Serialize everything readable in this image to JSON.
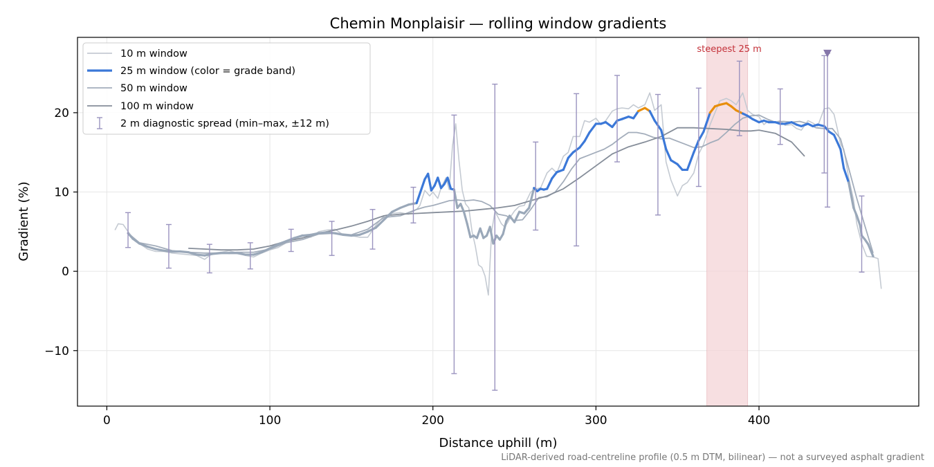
{
  "chart_data": {
    "type": "line",
    "title": "Chemin Monplaisir — rolling window gradients",
    "xlabel": "Distance uphill (m)",
    "ylabel": "Gradient (%)",
    "xlim": [
      -18,
      498
    ],
    "ylim": [
      -17,
      29.5
    ],
    "xticks": [
      0,
      100,
      200,
      300,
      400
    ],
    "yticks": [
      -10,
      0,
      10,
      20
    ],
    "ytick_labels": [
      "−10",
      "0",
      "10",
      "20"
    ],
    "grid": true,
    "legend_position": "top-left",
    "highlight": {
      "label": "steepest 25 m",
      "x_start": 368,
      "x_end": 393
    },
    "marker": {
      "shape": "down-triangle",
      "x": 442,
      "y": 27.5
    },
    "footnote": "LiDAR-derived road-centreline profile (0.5 m DTM, bilinear) — not a surveyed asphalt gradient",
    "legend": [
      "10 m window",
      "25 m window (color = grade band)",
      "50 m window",
      "100 m window",
      "2 m diagnostic spread (min–max, ±12 m)"
    ],
    "colors": {
      "w10": "#c4cad2",
      "w25_low": "#9aa8b9",
      "w25_mid": "#3b78d8",
      "w25_high": "#e88e0c",
      "w50": "#a3adbb",
      "w100": "#858d99",
      "spread": "#9a93bf",
      "highlight": "#f5d5d8",
      "annotation": "#c4323a",
      "marker": "#8677aa"
    },
    "series": [
      {
        "name": "10 m window",
        "x": [
          5,
          7,
          10,
          13,
          16,
          20,
          25,
          30,
          35,
          40,
          45,
          50,
          55,
          60,
          65,
          70,
          75,
          80,
          85,
          90,
          95,
          100,
          105,
          110,
          115,
          120,
          125,
          130,
          135,
          140,
          145,
          150,
          155,
          160,
          165,
          170,
          175,
          180,
          185,
          190,
          192,
          195,
          198,
          200,
          203,
          205,
          208,
          210,
          212,
          214,
          216,
          218,
          220,
          222,
          224,
          226,
          228,
          230,
          232,
          234,
          236,
          238,
          240,
          242,
          244,
          246,
          248,
          250,
          253,
          256,
          260,
          263,
          266,
          270,
          273,
          276,
          280,
          283,
          286,
          290,
          293,
          296,
          300,
          303,
          306,
          310,
          313,
          316,
          320,
          323,
          326,
          330,
          333,
          336,
          340,
          343,
          346,
          350,
          353,
          356,
          360,
          363,
          366,
          370,
          373,
          376,
          380,
          383,
          386,
          390,
          393,
          396,
          400,
          403,
          406,
          410,
          413,
          416,
          420,
          423,
          426,
          430,
          433,
          436,
          440,
          443,
          446,
          448,
          450,
          452,
          455,
          458,
          460,
          463,
          466,
          470,
          473,
          475
        ],
        "y": [
          5.2,
          6.0,
          5.9,
          5.0,
          4.2,
          3.5,
          2.8,
          2.5,
          2.5,
          2.3,
          2.2,
          2.1,
          2.0,
          1.5,
          2.3,
          2.4,
          2.6,
          2.3,
          2.0,
          1.8,
          2.3,
          2.7,
          3.0,
          3.6,
          4.2,
          4.6,
          4.3,
          5.0,
          5.2,
          5.3,
          4.6,
          4.5,
          4.3,
          4.3,
          5.8,
          7.0,
          7.3,
          7.4,
          7.2,
          7.8,
          8.3,
          10.2,
          9.5,
          10.0,
          9.2,
          10.5,
          11.8,
          10.3,
          15.8,
          18.6,
          14.0,
          10.2,
          8.5,
          8.0,
          5.0,
          3.2,
          0.8,
          0.5,
          -0.6,
          -3.0,
          5.0,
          7.5,
          6.8,
          6.0,
          5.6,
          6.2,
          7.0,
          7.6,
          8.2,
          8.3,
          10.0,
          10.4,
          10.5,
          12.4,
          13.0,
          12.4,
          14.5,
          15.0,
          17.0,
          17.0,
          19.0,
          18.8,
          19.3,
          18.5,
          19.0,
          20.2,
          20.5,
          20.6,
          20.5,
          21.0,
          20.6,
          21.0,
          22.5,
          20.3,
          21.0,
          13.8,
          11.5,
          9.5,
          10.8,
          11.2,
          12.4,
          14.8,
          16.0,
          18.5,
          20.0,
          21.5,
          21.8,
          21.5,
          21.0,
          22.5,
          20.3,
          19.8,
          19.5,
          18.5,
          19.0,
          18.8,
          19.0,
          18.4,
          18.5,
          18.0,
          17.8,
          19.0,
          18.7,
          18.3,
          20.5,
          20.6,
          19.8,
          18.0,
          16.0,
          15.4,
          11.8,
          9.0,
          6.0,
          3.5,
          1.9,
          1.8,
          1.6,
          -2.2
        ]
      },
      {
        "name": "50 m window",
        "x": [
          13,
          20,
          30,
          40,
          50,
          60,
          70,
          80,
          90,
          100,
          110,
          120,
          130,
          140,
          150,
          160,
          170,
          180,
          190,
          195,
          200,
          205,
          210,
          215,
          220,
          225,
          230,
          235,
          240,
          245,
          250,
          255,
          260,
          265,
          270,
          275,
          280,
          285,
          290,
          295,
          300,
          305,
          310,
          315,
          320,
          325,
          330,
          335,
          340,
          345,
          350,
          355,
          360,
          365,
          370,
          375,
          380,
          385,
          390,
          395,
          400,
          405,
          410,
          415,
          420,
          425,
          430,
          435,
          440,
          445,
          450,
          455,
          460,
          465,
          470
        ],
        "y": [
          4.8,
          3.6,
          3.2,
          2.6,
          2.4,
          2.3,
          2.3,
          2.4,
          2.4,
          2.8,
          3.6,
          4.0,
          4.7,
          4.8,
          4.6,
          5.3,
          6.8,
          7.0,
          7.8,
          8.1,
          8.3,
          8.6,
          8.9,
          9.0,
          8.9,
          9.0,
          8.8,
          8.3,
          7.2,
          7.0,
          6.4,
          6.5,
          7.8,
          9.3,
          9.4,
          10.0,
          11.3,
          12.9,
          14.2,
          14.6,
          15.0,
          15.4,
          16.0,
          16.8,
          17.5,
          17.5,
          17.3,
          16.9,
          16.7,
          16.8,
          16.4,
          16.0,
          15.6,
          15.7,
          16.2,
          16.6,
          17.5,
          18.5,
          19.3,
          19.6,
          19.7,
          19.2,
          18.8,
          18.9,
          18.8,
          18.9,
          18.6,
          18.1,
          18.0,
          18.0,
          16.7,
          13.0,
          9.2,
          5.7,
          2.3
        ]
      },
      {
        "name": "100 m window",
        "x": [
          50,
          60,
          70,
          80,
          90,
          100,
          110,
          120,
          130,
          140,
          150,
          160,
          170,
          180,
          190,
          200,
          210,
          220,
          230,
          240,
          250,
          260,
          270,
          280,
          290,
          300,
          310,
          320,
          330,
          340,
          350,
          360,
          370,
          380,
          390,
          395,
          400,
          410,
          420,
          428
        ],
        "y": [
          2.9,
          2.8,
          2.7,
          2.7,
          2.8,
          3.2,
          3.8,
          4.2,
          4.8,
          5.2,
          5.7,
          6.3,
          7.0,
          7.2,
          7.3,
          7.4,
          7.5,
          7.6,
          7.8,
          8.0,
          8.3,
          8.9,
          9.5,
          10.4,
          11.8,
          13.3,
          14.8,
          15.7,
          16.3,
          17.0,
          18.1,
          18.1,
          18.0,
          17.9,
          17.7,
          17.7,
          17.8,
          17.4,
          16.3,
          14.5
        ]
      },
      {
        "name": "25 m window (color = grade band)",
        "x": [
          13,
          16,
          20,
          25,
          30,
          35,
          40,
          45,
          50,
          55,
          60,
          65,
          70,
          75,
          80,
          85,
          90,
          95,
          100,
          105,
          110,
          115,
          120,
          125,
          130,
          135,
          140,
          145,
          150,
          155,
          160,
          165,
          170,
          175,
          180,
          185,
          190,
          195,
          197,
          199,
          201,
          203,
          205,
          207,
          209,
          211,
          213,
          215,
          217,
          219,
          221,
          223,
          225,
          227,
          229,
          231,
          233,
          235,
          237,
          239,
          241,
          243,
          245,
          247,
          250,
          253,
          256,
          259,
          262,
          264,
          266,
          268,
          270,
          273,
          276,
          280,
          283,
          286,
          290,
          293,
          296,
          300,
          303,
          306,
          310,
          313,
          316,
          320,
          323,
          326,
          330,
          333,
          336,
          340,
          343,
          346,
          350,
          353,
          356,
          360,
          363,
          366,
          370,
          373,
          376,
          380,
          383,
          386,
          390,
          393,
          396,
          400,
          403,
          406,
          410,
          413,
          416,
          420,
          423,
          426,
          430,
          433,
          436,
          440,
          443,
          446,
          450,
          452,
          455,
          458,
          460,
          462,
          463,
          465,
          467,
          470
        ],
        "y": [
          4.8,
          4.1,
          3.5,
          3.1,
          2.8,
          2.6,
          2.5,
          2.5,
          2.4,
          2.1,
          2.0,
          2.2,
          2.3,
          2.3,
          2.3,
          2.1,
          2.1,
          2.4,
          2.9,
          3.4,
          3.8,
          4.2,
          4.5,
          4.6,
          4.8,
          4.9,
          4.8,
          4.6,
          4.5,
          4.6,
          5.0,
          5.5,
          6.5,
          7.5,
          8.0,
          8.4,
          8.6,
          11.6,
          12.3,
          10.2,
          10.8,
          11.8,
          10.5,
          11.0,
          11.8,
          10.4,
          10.3,
          8.0,
          8.5,
          7.5,
          6.0,
          4.3,
          4.5,
          4.2,
          5.4,
          4.2,
          4.5,
          5.6,
          3.5,
          4.5,
          4.0,
          4.7,
          6.3,
          7.0,
          6.2,
          7.5,
          7.3,
          8.0,
          10.5,
          10.1,
          10.4,
          10.3,
          10.4,
          11.7,
          12.5,
          12.8,
          14.3,
          15.0,
          15.6,
          16.4,
          17.5,
          18.6,
          18.6,
          18.8,
          18.2,
          19.0,
          19.2,
          19.5,
          19.3,
          20.2,
          20.6,
          20.2,
          19.0,
          17.8,
          15.4,
          14.0,
          13.5,
          12.8,
          12.8,
          15.0,
          16.5,
          17.6,
          20.0,
          20.8,
          21.0,
          21.2,
          20.8,
          20.3,
          19.9,
          19.6,
          19.2,
          18.8,
          19.0,
          18.8,
          18.8,
          18.6,
          18.6,
          18.8,
          18.5,
          18.3,
          18.6,
          18.3,
          18.5,
          18.3,
          17.6,
          17.2,
          15.4,
          13.0,
          11.2,
          8.0,
          7.0,
          5.8,
          4.5,
          4.0,
          3.4,
          1.9
        ],
        "grade_band_thresholds": [
          10,
          20
        ]
      }
    ],
    "spread_bars": {
      "name": "2 m diagnostic spread (min–max, ±12 m)",
      "x": [
        13,
        38,
        63,
        88,
        113,
        138,
        163,
        188,
        213,
        238,
        263,
        288,
        313,
        338,
        363,
        388,
        413,
        440,
        442,
        463
      ],
      "min": [
        3.0,
        0.4,
        -0.2,
        0.3,
        2.5,
        2.0,
        2.8,
        6.1,
        -12.9,
        -15.0,
        5.2,
        3.2,
        13.8,
        7.1,
        10.7,
        17.1,
        16.0,
        12.4,
        8.1,
        -0.1
      ],
      "max": [
        7.4,
        5.9,
        3.4,
        3.6,
        5.3,
        6.3,
        7.8,
        10.6,
        19.7,
        23.6,
        16.3,
        22.4,
        24.7,
        22.3,
        23.1,
        26.5,
        23.0,
        27.2,
        27.5,
        9.5
      ]
    }
  }
}
